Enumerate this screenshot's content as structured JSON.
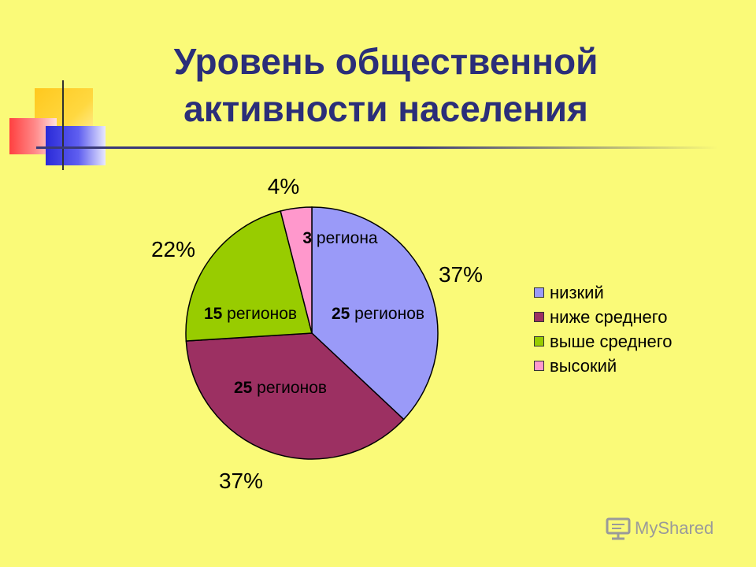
{
  "slide": {
    "title_line1": "Уровень общественной",
    "title_line2": "активности населения"
  },
  "chart_data": {
    "type": "pie",
    "slices": [
      {
        "label": "низкий",
        "percent": 37,
        "percent_label": "37%",
        "count": "25",
        "count_suffix": " регионов",
        "color": "#9a9af8"
      },
      {
        "label": "ниже среднего",
        "percent": 37,
        "percent_label": "37%",
        "count": "25",
        "count_suffix": " регионов",
        "color": "#9c3062"
      },
      {
        "label": "выше среднего",
        "percent": 22,
        "percent_label": "22%",
        "count": "15",
        "count_suffix": " регионов",
        "color": "#98cc00"
      },
      {
        "label": "высокий",
        "percent": 4,
        "percent_label": "4%",
        "count": "3",
        "count_suffix": " региона",
        "color": "#ff98cc"
      }
    ],
    "legend_position": "right"
  },
  "watermark": {
    "text": "MyShared"
  }
}
